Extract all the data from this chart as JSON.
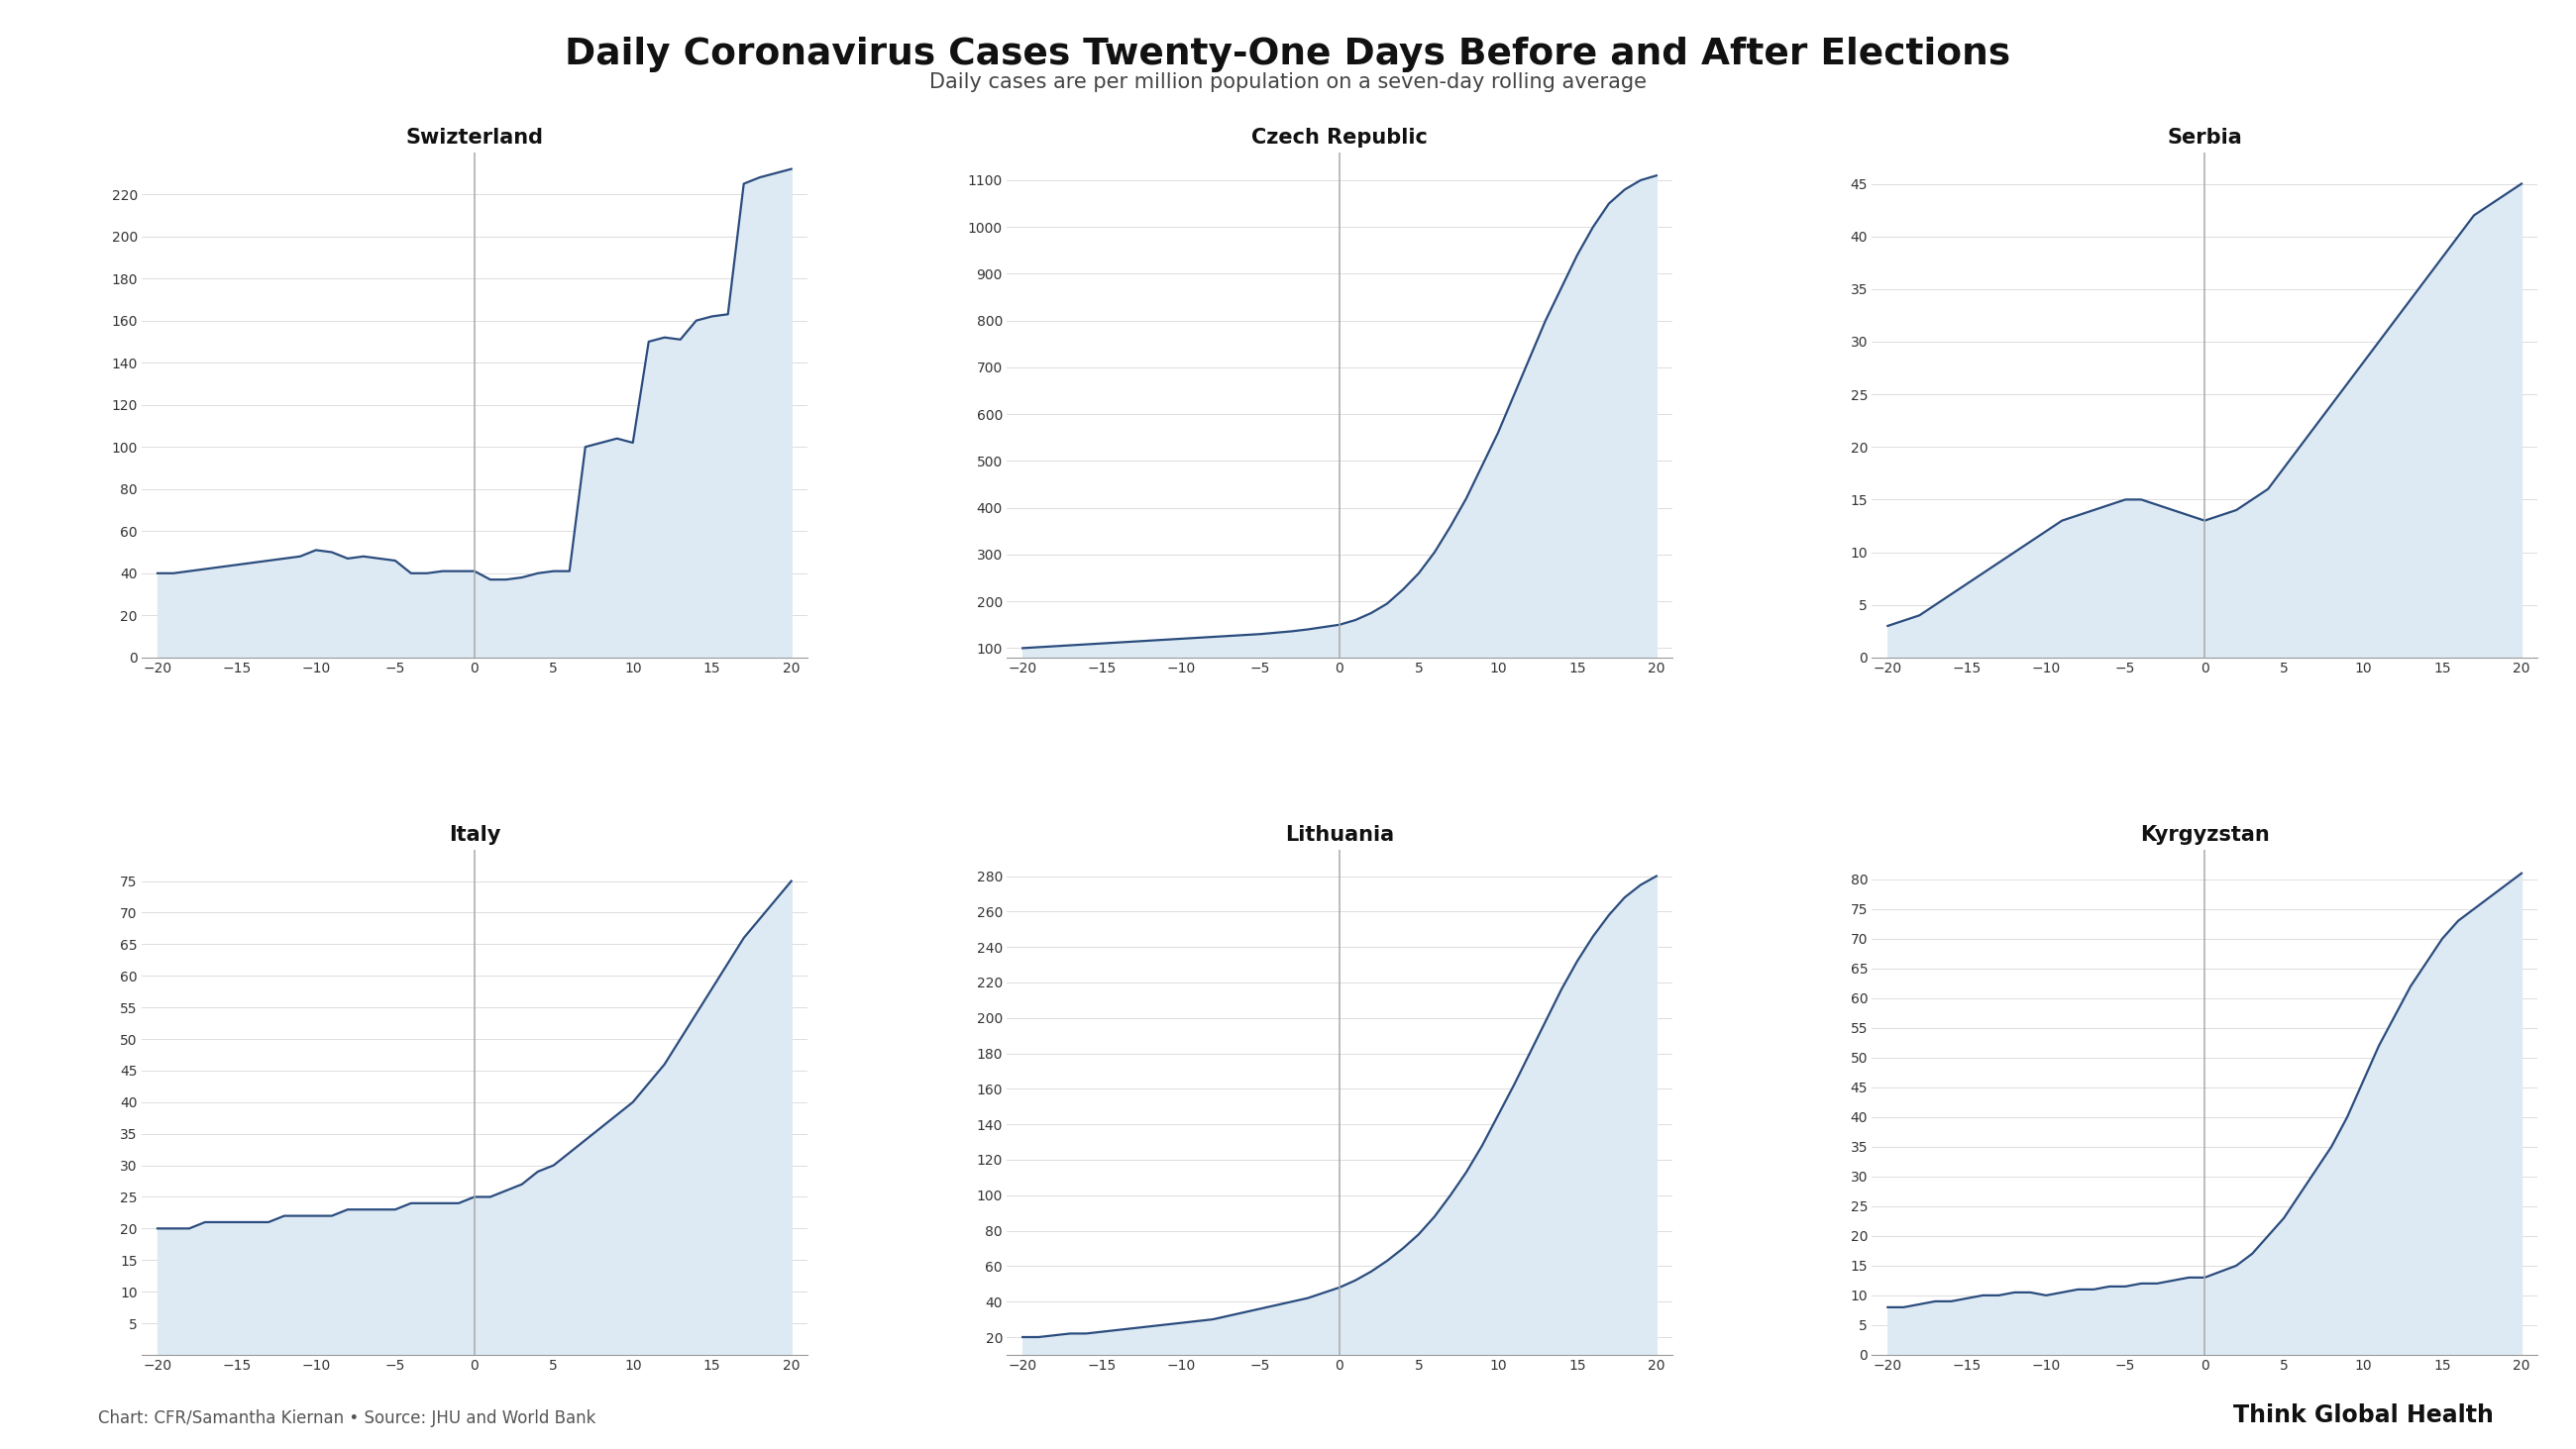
{
  "title": "Daily Coronavirus Cases Twenty-One Days Before and After Elections",
  "subtitle": "Daily cases are per million population on a seven-day rolling average",
  "footer_left": "Chart: CFR/Samantha Kiernan • Source: JHU and World Bank",
  "footer_right": "Think Global Health",
  "background_color": "#ffffff",
  "fill_color": "#ddeaf3",
  "line_color": "#2b4c7e",
  "vline_color": "#aaaaaa",
  "plots": [
    {
      "title": "Swizterland",
      "yticks": [
        0,
        20,
        40,
        60,
        80,
        100,
        120,
        140,
        160,
        180,
        200,
        220
      ],
      "ylim": [
        0,
        240
      ],
      "x": [
        -20,
        -19,
        -18,
        -17,
        -16,
        -15,
        -14,
        -13,
        -12,
        -11,
        -10,
        -9,
        -8,
        -7,
        -6,
        -5,
        -4,
        -3,
        -2,
        -1,
        0,
        1,
        2,
        3,
        4,
        5,
        6,
        7,
        8,
        9,
        10,
        11,
        12,
        13,
        14,
        15,
        16,
        17,
        18,
        19,
        20
      ],
      "y": [
        40,
        40,
        41,
        42,
        43,
        44,
        45,
        46,
        47,
        48,
        51,
        50,
        47,
        48,
        47,
        46,
        40,
        40,
        41,
        41,
        41,
        37,
        37,
        38,
        40,
        41,
        41,
        100,
        102,
        104,
        102,
        150,
        152,
        151,
        160,
        162,
        163,
        225,
        228,
        230,
        232
      ]
    },
    {
      "title": "Czech Republic",
      "yticks": [
        100,
        200,
        300,
        400,
        500,
        600,
        700,
        800,
        900,
        1000,
        1100
      ],
      "ylim": [
        80,
        1160
      ],
      "x": [
        -20,
        -19,
        -18,
        -17,
        -16,
        -15,
        -14,
        -13,
        -12,
        -11,
        -10,
        -9,
        -8,
        -7,
        -6,
        -5,
        -4,
        -3,
        -2,
        -1,
        0,
        1,
        2,
        3,
        4,
        5,
        6,
        7,
        8,
        9,
        10,
        11,
        12,
        13,
        14,
        15,
        16,
        17,
        18,
        19,
        20
      ],
      "y": [
        100,
        102,
        104,
        106,
        108,
        110,
        112,
        114,
        116,
        118,
        120,
        122,
        124,
        126,
        128,
        130,
        133,
        136,
        140,
        145,
        150,
        160,
        175,
        195,
        225,
        260,
        305,
        360,
        420,
        490,
        560,
        640,
        720,
        800,
        870,
        940,
        1000,
        1050,
        1080,
        1100,
        1110
      ]
    },
    {
      "title": "Serbia",
      "yticks": [
        0,
        5,
        10,
        15,
        20,
        25,
        30,
        35,
        40,
        45
      ],
      "ylim": [
        0,
        48
      ],
      "x": [
        -20,
        -19,
        -18,
        -17,
        -16,
        -15,
        -14,
        -13,
        -12,
        -11,
        -10,
        -9,
        -8,
        -7,
        -6,
        -5,
        -4,
        -3,
        -2,
        -1,
        0,
        1,
        2,
        3,
        4,
        5,
        6,
        7,
        8,
        9,
        10,
        11,
        12,
        13,
        14,
        15,
        16,
        17,
        18,
        19,
        20
      ],
      "y": [
        3,
        3.5,
        4,
        5,
        6,
        7,
        8,
        9,
        10,
        11,
        12,
        13,
        13.5,
        14,
        14.5,
        15,
        15,
        14.5,
        14,
        13.5,
        13,
        13.5,
        14,
        15,
        16,
        18,
        20,
        22,
        24,
        26,
        28,
        30,
        32,
        34,
        36,
        38,
        40,
        42,
        43,
        44,
        45
      ]
    },
    {
      "title": "Italy",
      "yticks": [
        5,
        10,
        15,
        20,
        25,
        30,
        35,
        40,
        45,
        50,
        55,
        60,
        65,
        70,
        75
      ],
      "ylim": [
        0,
        80
      ],
      "x": [
        -20,
        -19,
        -18,
        -17,
        -16,
        -15,
        -14,
        -13,
        -12,
        -11,
        -10,
        -9,
        -8,
        -7,
        -6,
        -5,
        -4,
        -3,
        -2,
        -1,
        0,
        1,
        2,
        3,
        4,
        5,
        6,
        7,
        8,
        9,
        10,
        11,
        12,
        13,
        14,
        15,
        16,
        17,
        18,
        19,
        20
      ],
      "y": [
        20,
        20,
        20,
        21,
        21,
        21,
        21,
        21,
        22,
        22,
        22,
        22,
        23,
        23,
        23,
        23,
        24,
        24,
        24,
        24,
        25,
        25,
        26,
        27,
        29,
        30,
        32,
        34,
        36,
        38,
        40,
        43,
        46,
        50,
        54,
        58,
        62,
        66,
        69,
        72,
        75
      ]
    },
    {
      "title": "Lithuania",
      "yticks": [
        20,
        40,
        60,
        80,
        100,
        120,
        140,
        160,
        180,
        200,
        220,
        240,
        260,
        280
      ],
      "ylim": [
        10,
        295
      ],
      "x": [
        -20,
        -19,
        -18,
        -17,
        -16,
        -15,
        -14,
        -13,
        -12,
        -11,
        -10,
        -9,
        -8,
        -7,
        -6,
        -5,
        -4,
        -3,
        -2,
        -1,
        0,
        1,
        2,
        3,
        4,
        5,
        6,
        7,
        8,
        9,
        10,
        11,
        12,
        13,
        14,
        15,
        16,
        17,
        18,
        19,
        20
      ],
      "y": [
        20,
        20,
        21,
        22,
        22,
        23,
        24,
        25,
        26,
        27,
        28,
        29,
        30,
        32,
        34,
        36,
        38,
        40,
        42,
        45,
        48,
        52,
        57,
        63,
        70,
        78,
        88,
        100,
        113,
        128,
        145,
        162,
        180,
        198,
        216,
        232,
        246,
        258,
        268,
        275,
        280
      ]
    },
    {
      "title": "Kyrgyzstan",
      "yticks": [
        0,
        5,
        10,
        15,
        20,
        25,
        30,
        35,
        40,
        45,
        50,
        55,
        60,
        65,
        70,
        75,
        80
      ],
      "ylim": [
        0,
        85
      ],
      "x": [
        -20,
        -19,
        -18,
        -17,
        -16,
        -15,
        -14,
        -13,
        -12,
        -11,
        -10,
        -9,
        -8,
        -7,
        -6,
        -5,
        -4,
        -3,
        -2,
        -1,
        0,
        1,
        2,
        3,
        4,
        5,
        6,
        7,
        8,
        9,
        10,
        11,
        12,
        13,
        14,
        15,
        16,
        17,
        18,
        19,
        20
      ],
      "y": [
        8,
        8,
        8.5,
        9,
        9,
        9.5,
        10,
        10,
        10.5,
        10.5,
        10,
        10.5,
        11,
        11,
        11.5,
        11.5,
        12,
        12,
        12.5,
        13,
        13,
        14,
        15,
        17,
        20,
        23,
        27,
        31,
        35,
        40,
        46,
        52,
        57,
        62,
        66,
        70,
        73,
        75,
        77,
        79,
        81
      ]
    }
  ]
}
